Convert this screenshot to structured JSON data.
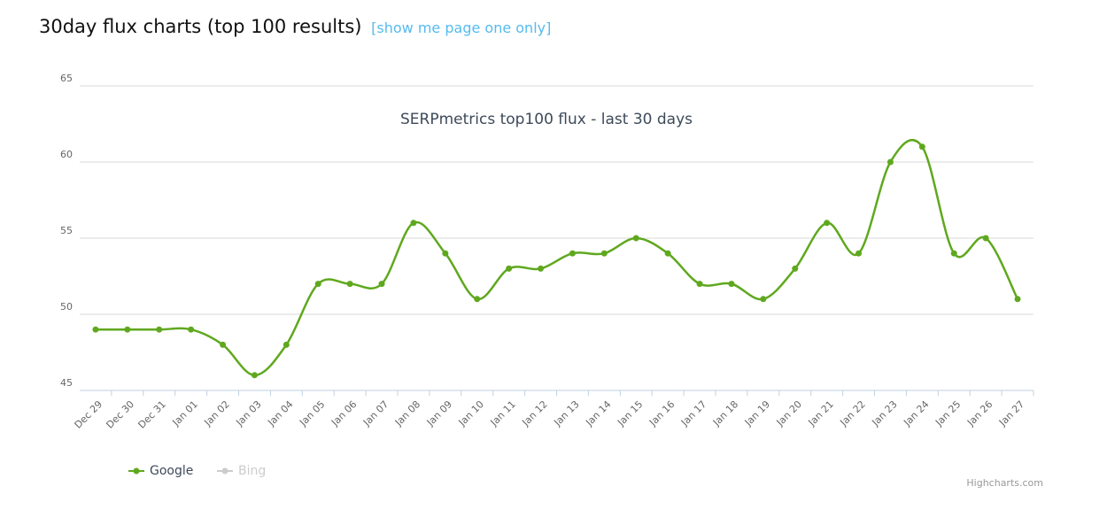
{
  "page": {
    "heading": "30day flux charts (top 100 results)",
    "link": "[show me page one only]"
  },
  "chart_data": {
    "type": "line",
    "title": "SERPmetrics top100 flux - last 30 days",
    "categories": [
      "Dec 29",
      "Dec 30",
      "Dec 31",
      "Jan 01",
      "Jan 02",
      "Jan 03",
      "Jan 04",
      "Jan 05",
      "Jan 06",
      "Jan 07",
      "Jan 08",
      "Jan 09",
      "Jan 10",
      "Jan 11",
      "Jan 12",
      "Jan 13",
      "Jan 14",
      "Jan 15",
      "Jan 16",
      "Jan 17",
      "Jan 18",
      "Jan 19",
      "Jan 20",
      "Jan 21",
      "Jan 22",
      "Jan 23",
      "Jan 24",
      "Jan 25",
      "Jan 26",
      "Jan 27"
    ],
    "series": [
      {
        "name": "Google",
        "color": "#5fa81e",
        "values": [
          49,
          49,
          49,
          49,
          48,
          46,
          48,
          52,
          52,
          52,
          56,
          54,
          51,
          53,
          53,
          54,
          54,
          55,
          54,
          52,
          52,
          51,
          53,
          56,
          54,
          60,
          61,
          54,
          55,
          51
        ]
      },
      {
        "name": "Bing",
        "color": "#cccccc",
        "visible": false
      }
    ],
    "ylim": [
      45,
      65
    ],
    "yticks": [
      45,
      50,
      55,
      60,
      65
    ],
    "grid": true,
    "legend": "bottom-left",
    "credits": "Highcharts.com"
  }
}
